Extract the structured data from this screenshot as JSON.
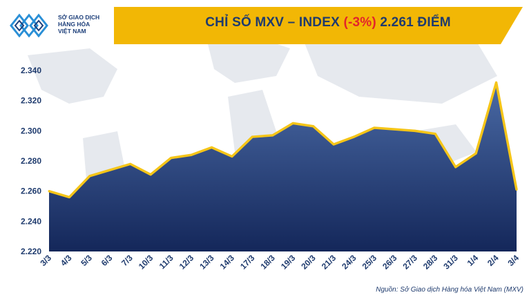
{
  "header": {
    "logo_lines": [
      "SỞ GIAO DỊCH",
      "HÀNG HÓA",
      "VIỆT NAM"
    ],
    "title_prefix": "CHỈ SỐ MXV – INDEX",
    "title_change": "(-3%)",
    "title_suffix": "2.261 ĐIỂM"
  },
  "source": "Nguồn: Sở Giao dịch Hàng hóa Việt Nam (MXV)",
  "colors": {
    "title_bar": "#f2b705",
    "title_text": "#1f3b6e",
    "negative": "#e3242b",
    "line": "#f5c518",
    "area_top": "#4a6aa5",
    "area_bottom": "#14275a",
    "axis_text": "#1f3b6e"
  },
  "chart_data": {
    "type": "area",
    "title": "CHỈ SỐ MXV – INDEX (-3%) 2.261 ĐIỂM",
    "xlabel": "",
    "ylabel": "",
    "ylim": [
      2220,
      2340
    ],
    "yticks": [
      2220,
      2240,
      2260,
      2280,
      2300,
      2320,
      2340
    ],
    "ytick_labels": [
      "2.220",
      "2.240",
      "2.260",
      "2.280",
      "2.300",
      "2.320",
      "2.340"
    ],
    "grid": false,
    "categories": [
      "3/3",
      "4/3",
      "5/3",
      "6/3",
      "7/3",
      "10/3",
      "11/3",
      "12/3",
      "13/3",
      "14/3",
      "17/3",
      "18/3",
      "19/3",
      "20/3",
      "21/3",
      "24/3",
      "25/3",
      "26/3",
      "27/3",
      "28/3",
      "31/3",
      "1/4",
      "2/4",
      "3/4"
    ],
    "values": [
      2260,
      2256,
      2270,
      2274,
      2278,
      2271,
      2282,
      2284,
      2289,
      2283,
      2296,
      2297,
      2305,
      2303,
      2291,
      2296,
      2302,
      2301,
      2300,
      2298,
      2276,
      2285,
      2332,
      2261
    ]
  }
}
